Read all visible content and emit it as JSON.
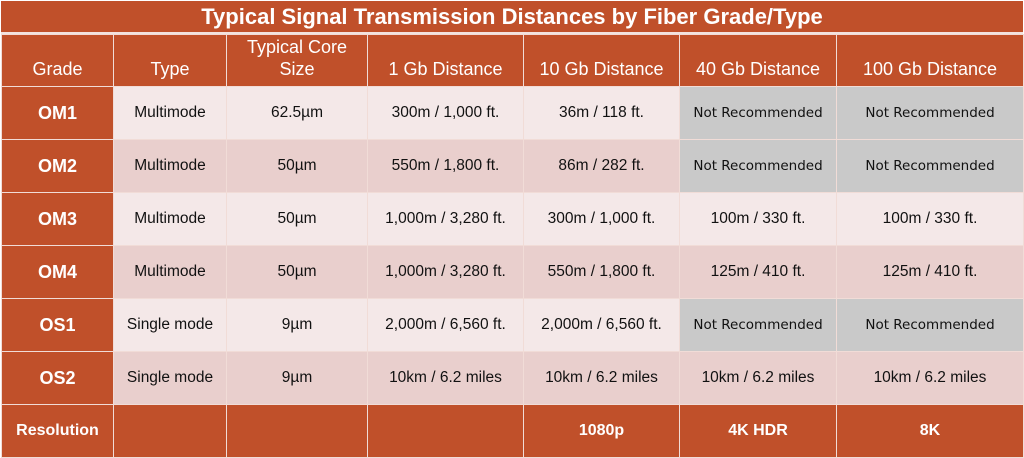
{
  "title": "Typical Signal Transmission Distances by Fiber Grade/Type",
  "colors": {
    "accent": "#C0502A",
    "row_light": "#F4E8E8",
    "row_dark": "#E9CFCD",
    "not_recommended": "#C9C9C9"
  },
  "headers": [
    "Grade",
    "Type",
    "Typical Core Size",
    "1 Gb Distance",
    "10 Gb Distance",
    "40 Gb Distance",
    "100 Gb Distance"
  ],
  "rows": [
    [
      "OM1",
      "Multimode",
      "62.5µm",
      "300m / 1,000 ft.",
      "36m / 118 ft.",
      "Not Recommended",
      "Not Recommended"
    ],
    [
      "OM2",
      "Multimode",
      "50µm",
      "550m / 1,800 ft.",
      "86m / 282 ft.",
      "Not Recommended",
      "Not Recommended"
    ],
    [
      "OM3",
      "Multimode",
      "50µm",
      "1,000m / 3,280 ft.",
      "300m / 1,000 ft.",
      "100m / 330 ft.",
      "100m / 330 ft."
    ],
    [
      "OM4",
      "Multimode",
      "50µm",
      "1,000m / 3,280 ft.",
      "550m / 1,800 ft.",
      "125m / 410 ft.",
      "125m / 410 ft."
    ],
    [
      "OS1",
      "Single mode",
      "9µm",
      "2,000m / 6,560 ft.",
      "2,000m / 6,560 ft.",
      "Not Recommended",
      "Not Recommended"
    ],
    [
      "OS2",
      "Single mode",
      "9µm",
      "10km / 6.2 miles",
      "10km / 6.2 miles",
      "10km / 6.2 miles",
      "10km / 6.2 miles"
    ]
  ],
  "resolution_row": [
    "Resolution",
    "",
    "",
    "",
    "1080p",
    "4K HDR",
    "8K"
  ]
}
